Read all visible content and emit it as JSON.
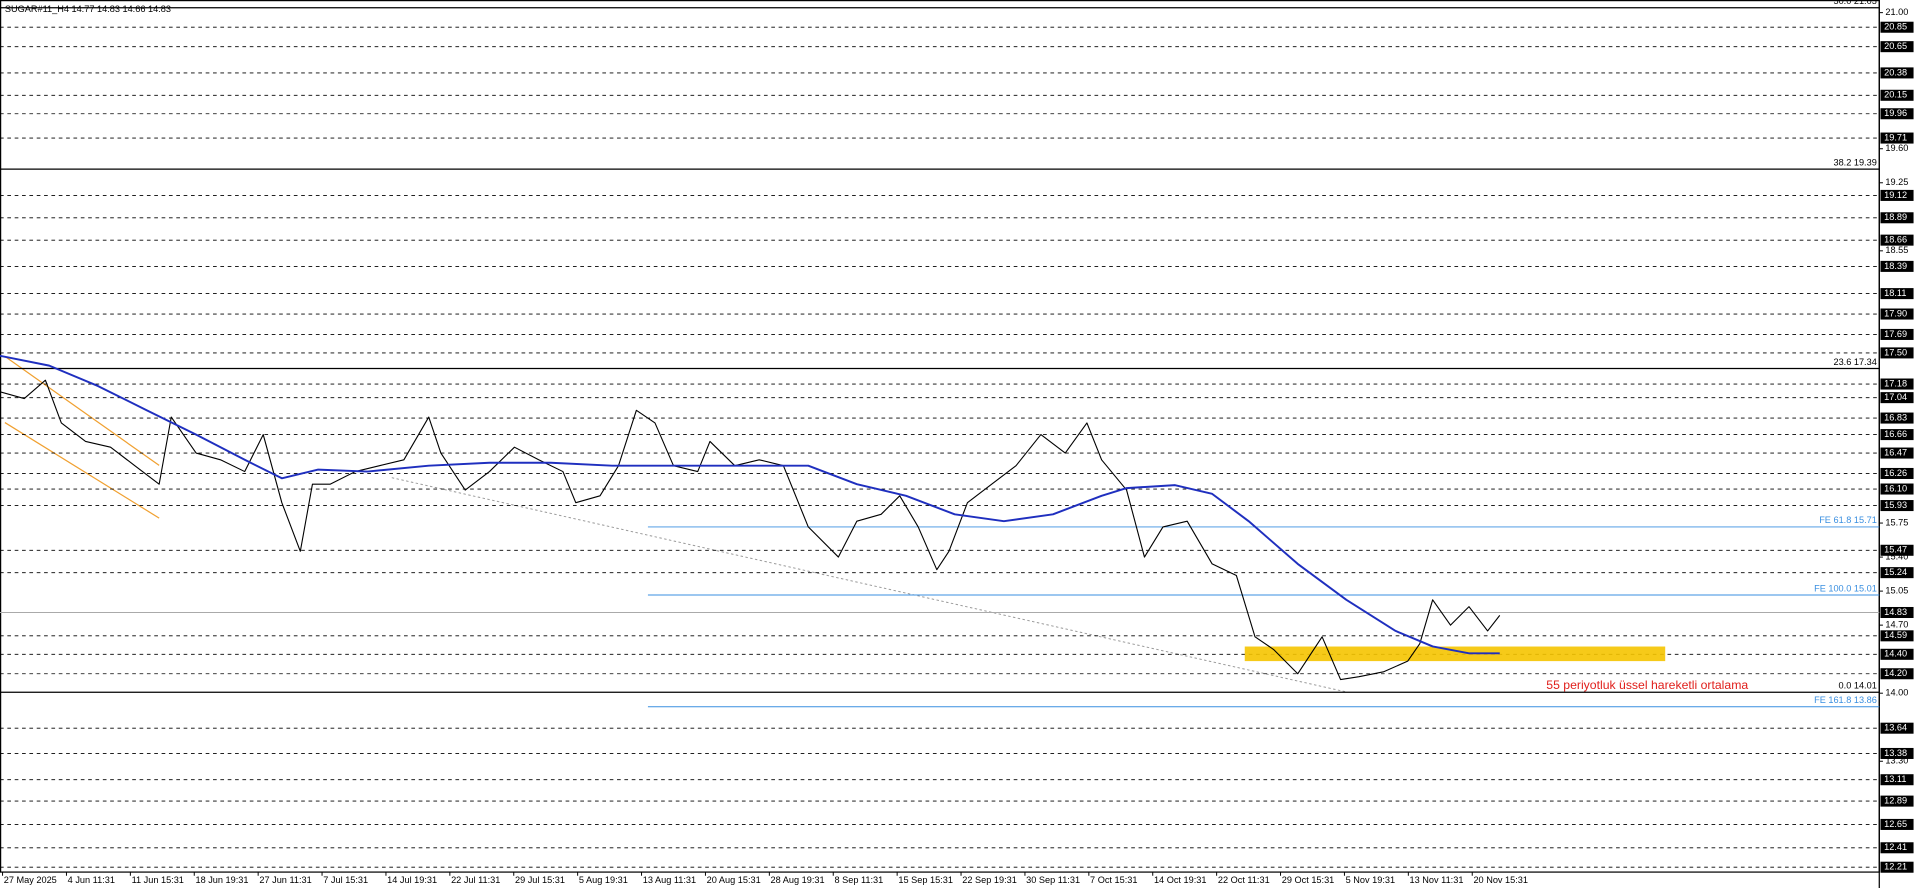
{
  "chart_data": {
    "type": "line",
    "title": "SUGAR#11_H4  14.77 14.83 14.66 14.83",
    "annotation": "55 periyotluk üssel hareketli ortalama",
    "categories": [
      "27 May 2025",
      "4 Jun 11:31",
      "11 Jun 15:31",
      "18 Jun 19:31",
      "27 Jun 11:31",
      "7 Jul 15:31",
      "14 Jul 19:31",
      "22 Jul 11:31",
      "29 Jul 15:31",
      "5 Aug 19:31",
      "13 Aug 11:31",
      "20 Aug 15:31",
      "28 Aug 19:31",
      "8 Sep 11:31",
      "15 Sep 15:31",
      "22 Sep 19:31",
      "30 Sep 11:31",
      "7 Oct 15:31",
      "14 Oct 19:31",
      "22 Oct 11:31",
      "29 Oct 15:31",
      "5 Nov 19:31",
      "13 Nov 11:31",
      "20 Nov 15:31"
    ],
    "xlim": [
      -0.04,
      29.37
    ],
    "ylim": [
      12.16,
      21.13
    ],
    "yticks": [
      {
        "value": 21,
        "label": "21.00"
      },
      {
        "value": 19.6,
        "label": "19.60"
      },
      19.25,
      18.55,
      15.75,
      {
        "value": 15.4,
        "label": "15.40"
      },
      15.05,
      {
        "value": 14.7,
        "label": "14.70"
      },
      {
        "value": 14,
        "label": "14.00"
      },
      {
        "value": 13.3,
        "label": "13.30"
      }
    ],
    "levels": [
      20.85,
      20.65,
      20.38,
      20.15,
      19.96,
      19.71,
      19.12,
      18.89,
      18.66,
      18.39,
      18.11,
      {
        "value": 17.9,
        "label": "17.90"
      },
      17.69,
      {
        "value": 17.5,
        "label": "17.50"
      },
      17.18,
      17.04,
      16.83,
      16.66,
      16.47,
      16.26,
      {
        "value": 16.1,
        "label": "16.10"
      },
      15.93,
      15.47,
      15.24,
      14.59,
      {
        "value": 14.4,
        "label": "14.40"
      },
      {
        "value": 14.2,
        "label": "14.20"
      },
      13.64,
      13.38,
      13.11,
      12.89,
      12.65,
      12.41,
      12.21
    ],
    "current_price": 14.83,
    "fibonacci": [
      {
        "value": 21.05,
        "label": "50.0 21.05"
      },
      {
        "value": 19.39,
        "label": "38.2 19.39"
      },
      {
        "value": 17.34,
        "label": "23.6 17.34"
      },
      {
        "value": 14.01,
        "label": "0.0 14.01"
      }
    ],
    "fibonacci_expansion": {
      "x_start": 10.1,
      "levels": [
        {
          "value": 15.71,
          "label": "FE 61.8 15.71"
        },
        {
          "value": 15.01,
          "label": "FE 100.0 15.01"
        },
        {
          "value": 13.86,
          "label": "FE 161.8 13.86"
        }
      ]
    },
    "zone": {
      "x": [
        19.44,
        26.02
      ],
      "y": [
        14.33,
        14.48
      ],
      "color": "#f5c400"
    },
    "series": [
      {
        "color": "#000000",
        "x": [
          -0.04,
          0.34,
          0.67,
          0.92,
          1.3,
          1.69,
          2.07,
          2.45,
          2.64,
          3.03,
          3.41,
          3.79,
          4.08,
          4.37,
          4.66,
          4.85,
          5.13,
          5.52,
          5.9,
          6.28,
          6.67,
          6.86,
          7.24,
          7.62,
          8.01,
          8.39,
          8.77,
          8.97,
          9.35,
          9.64,
          9.92,
          10.21,
          10.5,
          10.88,
          11.07,
          11.46,
          11.84,
          12.22,
          12.61,
          13.08,
          13.37,
          13.75,
          14.04,
          14.33,
          14.62,
          14.81,
          15.1,
          15.48,
          15.86,
          16.25,
          16.63,
          16.97,
          17.2,
          17.59,
          17.87,
          18.16,
          18.54,
          18.93,
          19.31,
          19.6,
          19.89,
          20.27,
          20.65,
          20.94,
          21.23,
          21.61,
          21.99,
          22.18,
          22.38,
          22.66,
          22.95,
          23.24,
          23.43
        ],
        "values": [
          17.1,
          17.03,
          17.22,
          16.78,
          16.59,
          16.53,
          16.34,
          16.15,
          16.84,
          16.47,
          16.4,
          16.28,
          16.66,
          15.96,
          15.46,
          16.15,
          16.15,
          16.28,
          16.34,
          16.4,
          16.84,
          16.47,
          16.09,
          16.28,
          16.53,
          16.4,
          16.28,
          15.96,
          16.03,
          16.34,
          16.91,
          16.78,
          16.34,
          16.28,
          16.59,
          16.34,
          16.4,
          16.34,
          15.71,
          15.4,
          15.77,
          15.84,
          16.03,
          15.71,
          15.27,
          15.46,
          15.96,
          16.15,
          16.34,
          16.66,
          16.47,
          16.78,
          16.4,
          16.09,
          15.4,
          15.71,
          15.77,
          15.33,
          15.21,
          14.58,
          14.45,
          14.2,
          14.58,
          14.14,
          14.17,
          14.22,
          14.33,
          14.51,
          14.96,
          14.7,
          14.89,
          14.64,
          14.8
        ]
      },
      {
        "color": "#1f2fbf",
        "x": [
          -0.04,
          0.73,
          1.49,
          2.26,
          3.03,
          3.79,
          4.37,
          4.94,
          5.71,
          6.67,
          7.62,
          8.58,
          9.54,
          10.5,
          11.46,
          12.22,
          12.61,
          13.37,
          14.14,
          14.9,
          15.67,
          16.44,
          17.2,
          17.59,
          18.35,
          18.93,
          19.5,
          20.27,
          21.03,
          21.8,
          22.38,
          22.95,
          23.43
        ],
        "values": [
          17.47,
          17.37,
          17.16,
          16.91,
          16.66,
          16.4,
          16.21,
          16.3,
          16.28,
          16.34,
          16.37,
          16.37,
          16.34,
          16.34,
          16.34,
          16.34,
          16.34,
          16.15,
          16.03,
          15.84,
          15.77,
          15.84,
          16.03,
          16.11,
          16.14,
          16.05,
          15.77,
          15.33,
          14.96,
          14.64,
          14.48,
          14.41,
          14.41
        ]
      }
    ]
  }
}
